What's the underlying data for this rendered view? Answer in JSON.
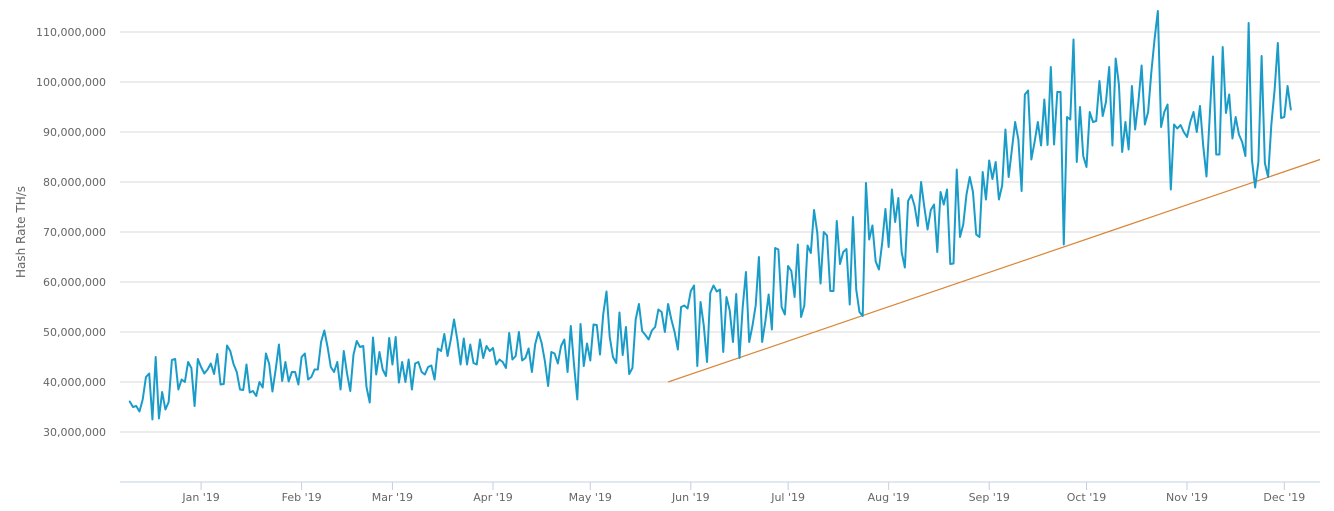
{
  "chart_data": {
    "type": "line",
    "ylabel": "Hash Rate TH/s",
    "ylim": [
      20000000,
      110000000
    ],
    "y_ticks": [
      30000000,
      40000000,
      50000000,
      60000000,
      70000000,
      80000000,
      90000000,
      100000000,
      110000000
    ],
    "y_tick_labels": [
      "30,000,000",
      "40,000,000",
      "50,000,000",
      "60,000,000",
      "70,000,000",
      "80,000,000",
      "90,000,000",
      "100,000,000",
      "110,000,000"
    ],
    "x_ticks": [
      "2019-01-01",
      "2019-02-01",
      "2019-03-01",
      "2019-04-01",
      "2019-05-01",
      "2019-06-01",
      "2019-07-01",
      "2019-08-01",
      "2019-09-01",
      "2019-10-01",
      "2019-11-01",
      "2019-12-01"
    ],
    "x_tick_labels": [
      "Jan '19",
      "Feb '19",
      "Mar '19",
      "Apr '19",
      "May '19",
      "Jun '19",
      "Jul '19",
      "Aug '19",
      "Sep '19",
      "Oct '19",
      "Nov '19",
      "Dec '19"
    ],
    "xlim": [
      "2018-12-07",
      "2019-12-12"
    ],
    "grid": true,
    "series": [
      {
        "color": "#1a9cc9",
        "start_date": "2018-12-10",
        "values": [
          36.1,
          35,
          35.2,
          34.1,
          36.5,
          41,
          41.7,
          32.5,
          45,
          32.7,
          38,
          34.5,
          36,
          44.4,
          44.6,
          38.5,
          40.5,
          40,
          44,
          42.8,
          35.2,
          44.6,
          43,
          41.7,
          42.5,
          43.7,
          41.6,
          45.6,
          39.5,
          39.6,
          47.3,
          46.2,
          43.6,
          42,
          38.5,
          38.4,
          43.5,
          37.9,
          38.2,
          37.2,
          40,
          38.9,
          45.7,
          43.6,
          38.1,
          42.5,
          47.5,
          40.2,
          44,
          40.1,
          42,
          42,
          39.5,
          45,
          45.7,
          40.5,
          41,
          42.5,
          42.5,
          48,
          50.3,
          47,
          43,
          42,
          44,
          38.5,
          46.2,
          41.7,
          38.2,
          45.5,
          48.2,
          47,
          47.2,
          39,
          35.9,
          48.9,
          41.5,
          46,
          42.5,
          41.2,
          48.8,
          43.5,
          49,
          39.9,
          44,
          40,
          44.5,
          38.5,
          43.7,
          44,
          42,
          41.5,
          43,
          43.3,
          40.5,
          46.7,
          46.2,
          49.6,
          45.2,
          48.5,
          52.5,
          48.5,
          43.5,
          48.7,
          43.5,
          47.5,
          43.8,
          43.5,
          48.5,
          44.8,
          47.2,
          46.2,
          46.8,
          43.5,
          44.5,
          44,
          42.8,
          49.8,
          44.5,
          45.2,
          50,
          44.3,
          44.8,
          46.7,
          42,
          47.5,
          50,
          47.8,
          44.2,
          39.2,
          46,
          45.7,
          43.7,
          47.2,
          48.5,
          42,
          51.2,
          43.4,
          36.5,
          51.6,
          43.2,
          47.7,
          44.3,
          51.5,
          51.4,
          45.5,
          53.6,
          58.1,
          49,
          45,
          43.8,
          53.9,
          45.4,
          51,
          41.6,
          42.8,
          52.5,
          55.6,
          50.2,
          49.4,
          48.5,
          50.3,
          51,
          54.5,
          54,
          50,
          55.6,
          52.5,
          50,
          46.5,
          55,
          55.3,
          54.7,
          58.2,
          59.3,
          43.2,
          56,
          51.3,
          44,
          57.8,
          59.3,
          58.1,
          58.5,
          46,
          57,
          54.3,
          48,
          57.6,
          44.8,
          55,
          62,
          48,
          51.2,
          55.3,
          65,
          48,
          52.2,
          57.5,
          50.5,
          66.8,
          66.5,
          55,
          53.5,
          63.2,
          62.2,
          57,
          67.5,
          53,
          55.3,
          67.3,
          65.8,
          74.4,
          69.8,
          59.7,
          70,
          69.3,
          58.2,
          58.2,
          72.2,
          63.6,
          66,
          66.6,
          55.5,
          73,
          58.5,
          54,
          53.2,
          79.8,
          68.5,
          71.3,
          64.1,
          62.5,
          67.8,
          74.6,
          67,
          78.5,
          72,
          76.8,
          66,
          62.9,
          76.2,
          77.4,
          75.2,
          71.2,
          80,
          75,
          70.5,
          74.4,
          75.5,
          66,
          78,
          75.5,
          78.5,
          63.6,
          63.7,
          82.5,
          69,
          71.5,
          77.5,
          81,
          78,
          69.5,
          69,
          82,
          76.5,
          84.3,
          80.6,
          84,
          76.5,
          79.3,
          90.5,
          81,
          86.5,
          92,
          88.5,
          78.2,
          97.5,
          98.3,
          84.5,
          88,
          92,
          87.3,
          96.5,
          87.4,
          103,
          87.5,
          98,
          98,
          67.5,
          93,
          92.5,
          108.5,
          84,
          95,
          85.2,
          83,
          94,
          92,
          92.2,
          100.2,
          93.2,
          96,
          103,
          87.3,
          104.7,
          99.5,
          86,
          92,
          86.5,
          99.2,
          90.5,
          96,
          103.3,
          91.5,
          94,
          102,
          108.6,
          114.2,
          91,
          94,
          95.5,
          78.5,
          91.5,
          90.7,
          91.4,
          90,
          89,
          92,
          94,
          90,
          95.2,
          87.2,
          81.1,
          93.2,
          105.1,
          85.5,
          85.5,
          107,
          93.8,
          97.5,
          88.7,
          93,
          89.5,
          88,
          85.2,
          111.8,
          84.5,
          78.9,
          84,
          105.2,
          83.8,
          81,
          91.5,
          98.4,
          107.8,
          92.8,
          93,
          99.2,
          94.5
        ]
      }
    ],
    "trendline": {
      "color": "#d98536",
      "start": {
        "x": "2019-05-25",
        "y": 40000000
      },
      "end": {
        "x": "2019-12-12",
        "y": 84500000
      }
    }
  }
}
